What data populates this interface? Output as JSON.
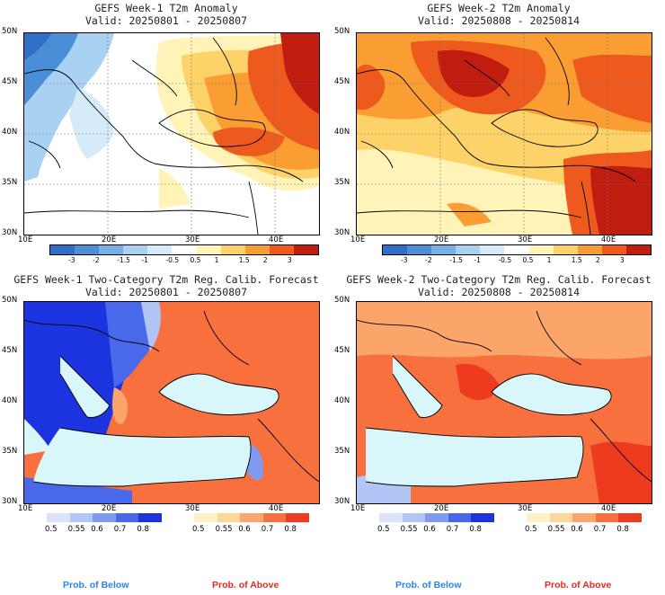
{
  "panels": [
    {
      "title": "GEFS Week-1 T2m Anomaly",
      "valid": "Valid: 20250801 - 20250807"
    },
    {
      "title": "GEFS Week-2 T2m Anomaly",
      "valid": "Valid: 20250808 - 20250814"
    },
    {
      "title": "GEFS Week-1 Two-Category T2m Reg. Calib. Forecast",
      "valid": "Valid: 20250801 - 20250807"
    },
    {
      "title": "GEFS Week-2 Two-Category T2m Reg. Calib. Forecast",
      "valid": "Valid: 20250808 - 20250814"
    }
  ],
  "lat_labels": [
    "50N",
    "45N",
    "40N",
    "35N",
    "30N"
  ],
  "lon_labels": [
    "10E",
    "20E",
    "30E",
    "40E"
  ],
  "anomaly_colorbar": {
    "ticks": [
      "-3",
      "-2",
      "-1.5",
      "-1",
      "-0.5",
      "0.5",
      "1",
      "1.5",
      "2",
      "3"
    ],
    "colors": [
      "#2f6fc8",
      "#4a8ed8",
      "#78b1e6",
      "#a9d1f2",
      "#d6ebfa",
      "#ffffff",
      "#fff3b8",
      "#fdd268",
      "#fa9e34",
      "#ee5a1d",
      "#c01c10"
    ]
  },
  "prob_colorbar": {
    "ticks": [
      "0.5",
      "0.55",
      "0.6",
      "0.7",
      "0.8"
    ],
    "below_colors": [
      "#dbe3fb",
      "#b3c4f6",
      "#7f9af0",
      "#4a68ea",
      "#1c33e0"
    ],
    "above_colors": [
      "#fff2c4",
      "#fdd69a",
      "#fca56a",
      "#f8703e",
      "#ee3b1f"
    ]
  },
  "legend": {
    "below": "Prob. of Below",
    "above": "Prob. of Above",
    "below_color": "#2b84e8",
    "above_color": "#e8281c"
  },
  "colors": {
    "sea": "#d9f7fb"
  }
}
